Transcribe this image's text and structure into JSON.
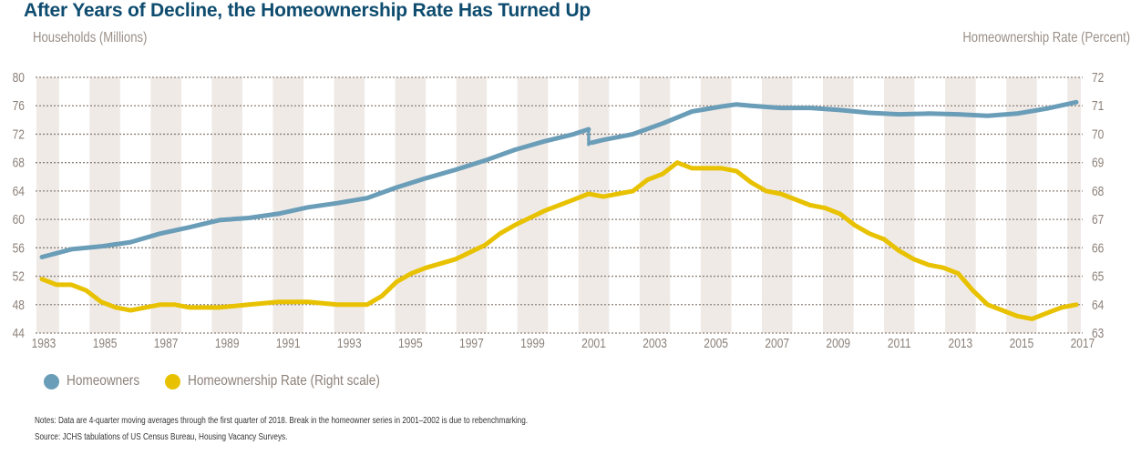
{
  "title": "After Years of Decline, the Homeownership Rate Has Turned Up",
  "notes": [
    "Notes: Data are 4-quarter moving averages through the first quarter of 2018. Break in the homeowner series in 2001–2002 is due to rebenchmarking.",
    "Source: JCHS tabulations of US Census Bureau, Housing Vacancy Surveys."
  ],
  "colors": {
    "homeowners": "#6a9db8",
    "rate": "#e8c200",
    "band": "#efeae6",
    "grid": "#8c8179",
    "title": "#0e4c6f",
    "axis_text": "#8c8179"
  },
  "chart_data": {
    "type": "line",
    "title": "After Years of Decline, the Homeownership Rate Has Turned Up",
    "ylabel_left": "Households (Millions)",
    "ylabel_right": "Homeownership Rate (Percent)",
    "xlabel": "",
    "xlim": [
      1983,
      2018
    ],
    "ylim_left": [
      44,
      80
    ],
    "ylim_right": [
      63,
      72
    ],
    "x_ticks": [
      "1983",
      "1985",
      "1987",
      "1989",
      "1991",
      "1993",
      "1995",
      "1997",
      "1999",
      "2001",
      "2003",
      "2005",
      "2007",
      "2009",
      "2011",
      "2013",
      "2015",
      "2017"
    ],
    "y_ticks_left": [
      44,
      48,
      52,
      56,
      60,
      64,
      68,
      72,
      76,
      80
    ],
    "y_ticks_right": [
      63,
      64,
      65,
      66,
      67,
      68,
      69,
      70,
      71,
      72
    ],
    "grid": "horizontal dotted",
    "shaded_bands": "alternating odd years",
    "legend_position": "bottom-left",
    "series": [
      {
        "name": "Homeowners",
        "axis": "left",
        "segments": [
          {
            "x": [
              1983.0,
              1984.0,
              1985.0,
              1986.0,
              1987.0,
              1988.0,
              1989.0,
              1990.0,
              1991.0,
              1992.0,
              1993.0,
              1994.0,
              1995.0,
              1996.0,
              1997.0,
              1998.0,
              1999.0,
              2000.0,
              2001.0,
              2001.5
            ],
            "y": [
              54.7,
              55.8,
              56.2,
              56.8,
              58.0,
              58.9,
              59.9,
              60.2,
              60.8,
              61.7,
              62.3,
              63.0,
              64.5,
              65.8,
              67.0,
              68.3,
              69.8,
              71.0,
              72.0,
              72.7
            ]
          },
          {
            "x": [
              2001.6,
              2002.0,
              2003.0,
              2004.0,
              2005.0,
              2006.0,
              2006.5,
              2007.0,
              2008.0,
              2009.0,
              2010.0,
              2011.0,
              2012.0,
              2013.0,
              2014.0,
              2015.0,
              2016.0,
              2017.0,
              2018.0
            ],
            "y": [
              70.8,
              71.2,
              72.0,
              73.5,
              75.2,
              75.9,
              76.2,
              76.0,
              75.7,
              75.7,
              75.4,
              75.0,
              74.8,
              74.9,
              74.8,
              74.6,
              74.9,
              75.6,
              76.5
            ]
          }
        ]
      },
      {
        "name": "Homeownership Rate (Right scale)",
        "axis": "right",
        "segments": [
          {
            "x": [
              1983.0,
              1983.5,
              1984.0,
              1984.5,
              1985.0,
              1985.5,
              1986.0,
              1986.5,
              1987.0,
              1987.5,
              1988.0,
              1988.5,
              1989.0,
              1990.0,
              1991.0,
              1992.0,
              1993.0,
              1994.0,
              1994.5,
              1995.0,
              1995.5,
              1996.0,
              1997.0,
              1998.0,
              1998.5,
              1999.0,
              2000.0,
              2001.0,
              2001.5,
              2002.0,
              2003.0,
              2003.5,
              2004.0,
              2004.5,
              2005.0,
              2005.5,
              2006.0,
              2006.5,
              2007.0,
              2007.5,
              2008.0,
              2009.0,
              2009.5,
              2010.0,
              2010.5,
              2011.0,
              2011.5,
              2012.0,
              2012.5,
              2013.0,
              2013.5,
              2014.0,
              2014.5,
              2015.0,
              2015.5,
              2016.0,
              2016.5,
              2017.0,
              2017.5,
              2018.0
            ],
            "y": [
              64.9,
              64.7,
              64.7,
              64.5,
              64.1,
              63.9,
              63.8,
              63.9,
              64.0,
              64.0,
              63.9,
              63.9,
              63.9,
              64.0,
              64.1,
              64.1,
              64.0,
              64.0,
              64.3,
              64.8,
              65.1,
              65.3,
              65.6,
              66.1,
              66.5,
              66.8,
              67.3,
              67.7,
              67.9,
              67.8,
              68.0,
              68.4,
              68.6,
              69.0,
              68.8,
              68.8,
              68.8,
              68.7,
              68.3,
              68.0,
              67.9,
              67.5,
              67.4,
              67.2,
              66.8,
              66.5,
              66.3,
              65.9,
              65.6,
              65.4,
              65.3,
              65.1,
              64.5,
              64.0,
              63.8,
              63.6,
              63.5,
              63.7,
              63.9,
              64.0
            ]
          }
        ]
      }
    ]
  }
}
